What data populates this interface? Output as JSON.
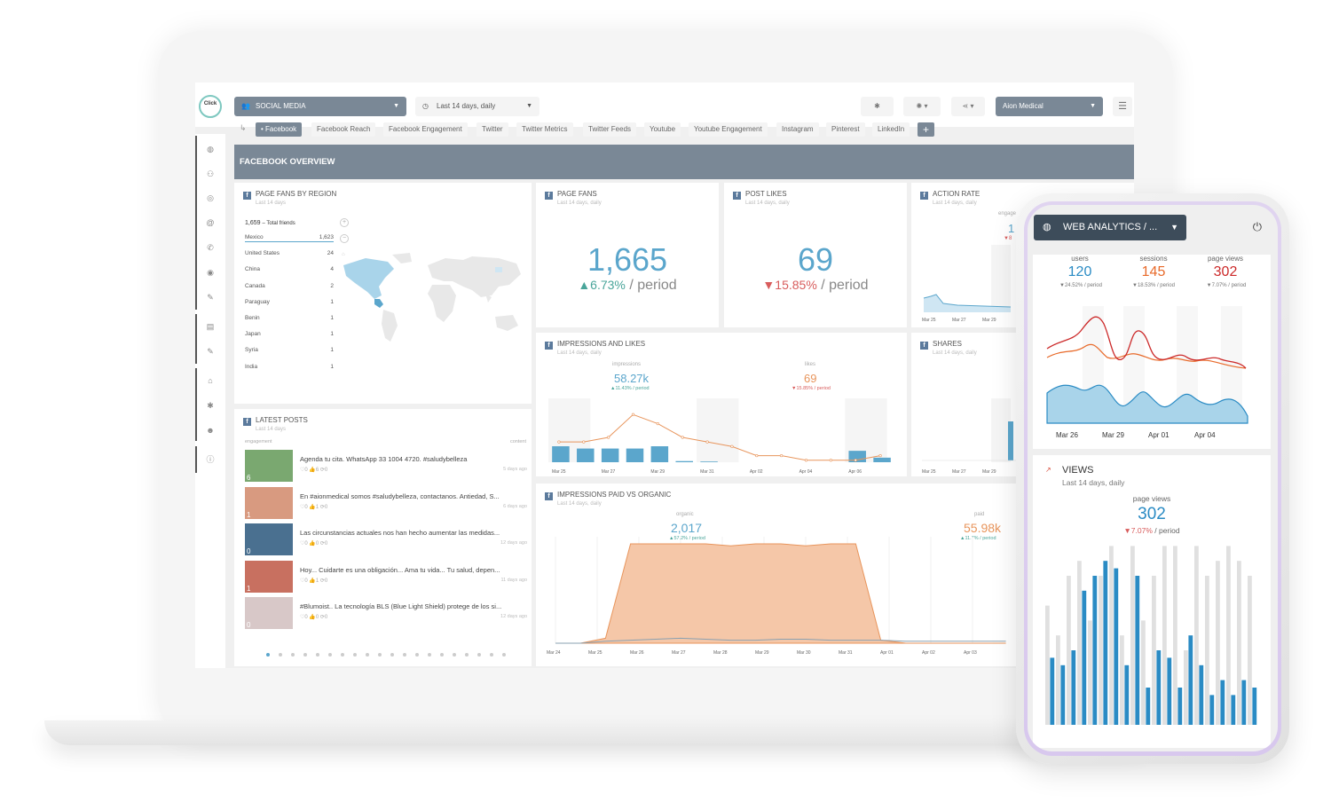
{
  "topbar": {
    "logo": "Click",
    "category": "SOCIAL MEDIA",
    "daterange": "Last 14 days, daily",
    "client": "Aion Medical"
  },
  "tabs": [
    "• Facebook",
    "Facebook Reach",
    "Facebook Engagement",
    "Twitter",
    "Twitter Metrics",
    "Twitter Feeds",
    "Youtube",
    "Youtube Engagement",
    "Instagram",
    "Pinterest",
    "LinkedIn"
  ],
  "overview": "FACEBOOK OVERVIEW",
  "fans_region": {
    "title": "PAGE FANS BY REGION",
    "sub": "Last 14 days",
    "total_value": "1,659",
    "total_label": "– Total friends",
    "rows": [
      {
        "name": "Mexico",
        "value": "1,623"
      },
      {
        "name": "United States",
        "value": "24"
      },
      {
        "name": "China",
        "value": "4"
      },
      {
        "name": "Canada",
        "value": "2"
      },
      {
        "name": "Paraguay",
        "value": "1"
      },
      {
        "name": "Benin",
        "value": "1"
      },
      {
        "name": "Japan",
        "value": "1"
      },
      {
        "name": "Syria",
        "value": "1"
      },
      {
        "name": "India",
        "value": "1"
      }
    ]
  },
  "page_fans": {
    "title": "PAGE FANS",
    "sub": "Last 14 days, daily",
    "value": "1,665",
    "change": "▲6.73%",
    "period": " / period"
  },
  "post_likes": {
    "title": "POST LIKES",
    "sub": "Last 14 days, daily",
    "value": "69",
    "change": "▼15.85%",
    "period": " / period"
  },
  "action_rate": {
    "title": "ACTION RATE",
    "sub": "Last 14 days, daily",
    "engag": "engage",
    "val": "1",
    "chg": "▼8"
  },
  "shares": {
    "title": "SHARES",
    "sub": "Last 14 days, daily"
  },
  "impr_likes": {
    "title": "IMPRESSIONS AND LIKES",
    "sub": "Last 14 days, daily",
    "lbl1": "impressions",
    "val1": "58.27k",
    "chg1": "▲11.43% / period",
    "lbl2": "likes",
    "val2": "69",
    "chg2": "▼15.85% / period"
  },
  "latest_posts": {
    "title": "LATEST POSTS",
    "sub": "Last 14 days",
    "col1": "engagement",
    "col2": "content",
    "posts": [
      {
        "text": "Agenda tu cita. WhatsApp 33 1004 4720. #saludybelleza",
        "meta": "♡0  👍6  ⟳0",
        "ago": "5 days ago",
        "eng": "6",
        "c": "#7aa870"
      },
      {
        "text": "En #aionmedical somos #saludybelleza, contactanos. Antiedad, S...",
        "meta": "♡0  👍1  ⟳0",
        "ago": "6 days ago",
        "eng": "1",
        "c": "#d89a80"
      },
      {
        "text": "Las circunstancias actuales nos han hecho aumentar las medidas...",
        "meta": "♡0  👍0  ⟳0",
        "ago": "12 days ago",
        "eng": "0",
        "c": "#4a7090"
      },
      {
        "text": "Hoy... Cuidarte es una obligación... Ama tu vida... Tu salud, depen...",
        "meta": "♡0  👍1  ⟳0",
        "ago": "11 days ago",
        "eng": "1",
        "c": "#c87060"
      },
      {
        "text": "#Blumoist.. La tecnología BLS (Blue Light Shield) protege de los si...",
        "meta": "♡0  👍0  ⟳0",
        "ago": "12 days ago",
        "eng": "0",
        "c": "#d8c8c8"
      }
    ]
  },
  "paid_org": {
    "title": "IMPRESSIONS PAID VS ORGANIC",
    "sub": "Last 14 days, daily",
    "lbl1": "organic",
    "val1": "2,017",
    "chg1": "▲57.2% / period",
    "lbl2": "paid",
    "val2": "55.98k",
    "chg2": "▲11.7% / period"
  },
  "xdates_a": [
    "Mar 25",
    "Mar 27",
    "Mar 29",
    "Mar 31",
    "Apr 02",
    "Apr 04",
    "Apr 06"
  ],
  "xdates_b": [
    "Mar 24",
    "Mar 25",
    "Mar 26",
    "Mar 27",
    "Mar 28",
    "Mar 29",
    "Mar 30",
    "Mar 31",
    "Apr 01",
    "Apr 02",
    "Apr 03"
  ],
  "xdates_c": [
    "Mar 25",
    "Mar 27",
    "Mar 29"
  ],
  "phone": {
    "title": "WEB ANALYTICS / ...",
    "m1": "users",
    "v1": "120",
    "c1": "▼24.52% / period",
    "m2": "sessions",
    "v2": "145",
    "c2": "▼18.53% / period",
    "m3": "page views",
    "v3": "302",
    "c3": "▼7.07% / period",
    "dates": [
      "Mar 26",
      "Mar 29",
      "Apr 01",
      "Apr 04"
    ],
    "views_title": "VIEWS",
    "views_sub": "Last 14 days, daily",
    "views_lbl": "page views",
    "views_val": "302",
    "views_chg": "▼7.07%",
    "views_period": " / period"
  },
  "chart_data": [
    {
      "type": "bar",
      "title": "IMPRESSIONS AND LIKES",
      "series": [
        {
          "name": "impressions",
          "values": [
            7,
            6,
            6,
            6,
            7,
            0.5,
            0.3,
            0,
            0,
            0,
            0,
            0,
            5,
            2
          ]
        },
        {
          "name": "likes",
          "values": [
            6,
            6,
            7,
            12,
            10,
            7,
            6,
            5,
            3,
            3,
            2,
            2,
            2,
            3
          ]
        }
      ]
    },
    {
      "type": "area",
      "title": "IMPRESSIONS PAID VS ORGANIC",
      "series": [
        {
          "name": "paid",
          "values": [
            0,
            0,
            0.5,
            10,
            10,
            10,
            10,
            9.8,
            10,
            10,
            9.8,
            10,
            10,
            0.3,
            0,
            0,
            0,
            0,
            0
          ]
        },
        {
          "name": "organic",
          "values": [
            0,
            0,
            0.2,
            0.3,
            0.4,
            0.5,
            0.4,
            0.3,
            0.3,
            0.4,
            0.4,
            0.3,
            0.3,
            0.3,
            0.2,
            0.2,
            0.2,
            0.2,
            0.2
          ]
        }
      ]
    },
    {
      "type": "bar",
      "title": "VIEWS",
      "series": [
        {
          "name": "page views",
          "values": [
            9,
            8,
            10,
            18,
            20,
            22,
            21,
            8,
            20,
            5,
            10,
            9,
            5,
            12,
            8,
            4,
            6,
            4,
            6,
            5
          ]
        }
      ]
    }
  ]
}
